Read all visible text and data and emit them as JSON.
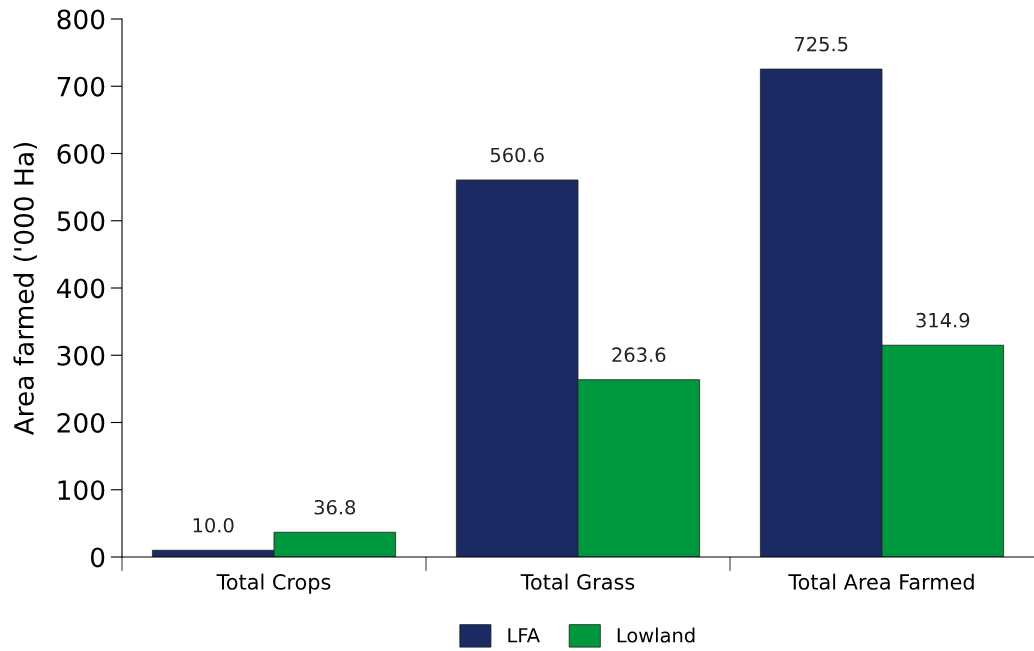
{
  "chart_data": {
    "type": "bar",
    "ylabel": "Area farmed ('000 Ha)",
    "categories": [
      "Total Crops",
      "Total Grass",
      "Total Area Farmed"
    ],
    "series": [
      {
        "name": "LFA",
        "color": "#1c2a63",
        "values": [
          10.0,
          560.6,
          725.5
        ],
        "value_labels": [
          "10.0",
          "560.6",
          "725.5"
        ]
      },
      {
        "name": "Lowland",
        "color": "#00983f",
        "values": [
          36.8,
          263.6,
          314.9
        ],
        "value_labels": [
          "36.8",
          "263.6",
          "314.9"
        ]
      }
    ],
    "ylim": [
      0,
      800
    ],
    "yticks": [
      0,
      100,
      200,
      300,
      400,
      500,
      600,
      700,
      800
    ],
    "grid": false,
    "legend": "bottom"
  }
}
